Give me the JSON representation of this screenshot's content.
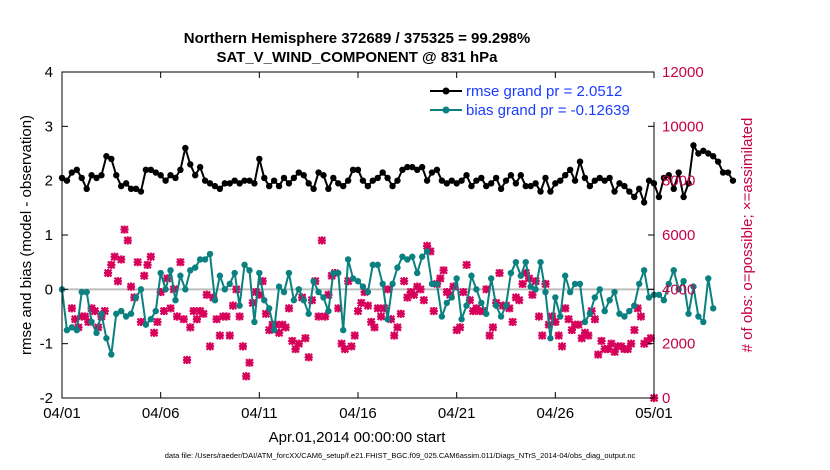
{
  "chart_data": {
    "type": "line",
    "title": "Northern Hemisphere 372689 / 375325 = 99.298%",
    "subtitle": "SAT_V_WIND_COMPONENT @ 831 hPa",
    "xlabel": "Apr.01,2014 00:00:00 start",
    "ylabel": "rmse and bias (model - observation)",
    "y2label": "# of obs: o=possible; ×=assimilated",
    "xlim": [
      0,
      30
    ],
    "ylim": [
      -2,
      4
    ],
    "y2lim": [
      0,
      12000
    ],
    "xticks": [
      0,
      5,
      10,
      15,
      20,
      25,
      30
    ],
    "xticklabels": [
      "04/01",
      "04/06",
      "04/11",
      "04/16",
      "04/21",
      "04/26",
      "05/01"
    ],
    "yticks": [
      -2,
      -1,
      0,
      1,
      2,
      3,
      4
    ],
    "y2ticks": [
      0,
      2000,
      4000,
      6000,
      8000,
      10000,
      12000
    ],
    "zero_line": 0,
    "legend": [
      "rmse grand pr = 2.0512",
      "bias grand pr = -0.12639"
    ],
    "x_step_days": 0.25,
    "series": [
      {
        "name": "rmse",
        "color": "#000000",
        "values": [
          2.05,
          2.0,
          2.15,
          2.2,
          2.05,
          1.85,
          2.1,
          2.05,
          2.1,
          2.45,
          2.4,
          2.1,
          1.9,
          1.95,
          1.85,
          1.85,
          1.8,
          2.2,
          2.2,
          2.15,
          2.1,
          2.0,
          2.1,
          2.05,
          2.2,
          2.6,
          2.3,
          2.1,
          2.25,
          2.0,
          1.95,
          1.9,
          1.85,
          1.95,
          1.95,
          2.0,
          1.95,
          2.0,
          2.0,
          1.95,
          2.4,
          2.05,
          1.9,
          2.0,
          1.9,
          2.05,
          1.95,
          2.05,
          2.15,
          2.1,
          1.95,
          1.85,
          2.15,
          2.1,
          1.85,
          2.05,
          1.95,
          1.9,
          2.0,
          2.2,
          2.2,
          2.0,
          1.9,
          2.0,
          2.05,
          2.15,
          2.05,
          1.9,
          2.0,
          2.2,
          2.25,
          2.25,
          2.2,
          2.25,
          2.0,
          2.15,
          2.2,
          2.0,
          1.95,
          2.0,
          1.95,
          2.0,
          2.1,
          1.9,
          2.0,
          2.05,
          1.9,
          1.95,
          2.05,
          1.85,
          2.0,
          2.1,
          1.95,
          2.1,
          1.9,
          1.9,
          1.95,
          1.8,
          2.05,
          1.8,
          1.95,
          2.0,
          2.1,
          2.2,
          2.0,
          2.35,
          2.05,
          1.9,
          2.0,
          2.05,
          2.0,
          2.05,
          1.8,
          1.95,
          1.9,
          1.8,
          1.7,
          1.85,
          1.6,
          2.0,
          1.95,
          1.7,
          2.05,
          2.1,
          1.85,
          2.15,
          1.7,
          1.95,
          2.65,
          2.5,
          2.55,
          2.5,
          2.45,
          2.35,
          2.15,
          2.15,
          2.0
        ],
        "start_day": 0
      },
      {
        "name": "bias",
        "color": "#0a8080",
        "values": [
          0.0,
          -0.75,
          -0.7,
          -0.75,
          -0.05,
          -0.05,
          -0.6,
          -0.8,
          -0.45,
          -0.9,
          -1.2,
          -0.45,
          -0.4,
          -0.5,
          -0.45,
          -0.15,
          0.0,
          -0.65,
          -0.55,
          -0.4,
          0.3,
          0.0,
          0.35,
          -0.2,
          0.25,
          0.0,
          0.35,
          0.4,
          0.55,
          0.55,
          0.65,
          -0.2,
          0.25,
          0.0,
          0.1,
          0.3,
          -0.3,
          0.45,
          0.35,
          -0.6,
          0.3,
          -0.2,
          -0.35,
          -0.75,
          0.05,
          -0.05,
          0.3,
          -0.2,
          0.0,
          -0.2,
          -0.45,
          0.15,
          -0.05,
          -0.15,
          -0.4,
          0.3,
          0.3,
          -0.75,
          0.55,
          0.2,
          0.15,
          0.05,
          -0.05,
          0.45,
          0.45,
          0.1,
          -0.55,
          0.1,
          0.4,
          0.6,
          0.55,
          0.6,
          0.3,
          0.6,
          0.7,
          0.1,
          0.1,
          -0.5,
          -0.25,
          -0.15,
          0.2,
          -0.55,
          -0.3,
          0.25,
          0.0,
          -0.25,
          -0.45,
          0.2,
          -0.3,
          -0.5,
          -0.3,
          0.3,
          0.5,
          0.25,
          0.5,
          0.05,
          0.0,
          0.5,
          -0.05,
          -0.9,
          -0.15,
          -0.5,
          0.25,
          -0.05,
          0.1,
          0.1,
          -0.6,
          -0.45,
          -0.15,
          0.0,
          -0.4,
          -0.2,
          -0.05,
          -0.45,
          -0.5,
          -0.4,
          -0.3,
          0.1,
          0.35,
          -0.15,
          -0.1,
          -0.1,
          -0.2,
          0.1,
          0.35,
          0.0,
          0.15,
          -0.45,
          0.05,
          -0.5,
          -0.6,
          0.2,
          -0.35
        ],
        "start_day": 0
      },
      {
        "name": "obs_assimilated",
        "color": "#d6005a",
        "axis": "right",
        "marker": "x",
        "values": [
          3300,
          2900,
          2600,
          3000,
          3000,
          2800,
          3300,
          3200,
          2600,
          3000,
          3200,
          4600,
          4900,
          5200,
          4300,
          5100,
          6200,
          5800,
          4100,
          3700,
          5000,
          2800,
          4500,
          4900,
          5200,
          2400,
          2800,
          3900,
          3200,
          4400,
          3300,
          4000,
          3000,
          5000,
          2900,
          1400,
          2600,
          3200,
          2900,
          3200,
          3100,
          3800,
          1900,
          3700,
          2900,
          2300,
          3000,
          3000,
          2300,
          3400,
          4000,
          3000,
          1900,
          800,
          1300,
          3500,
          3900,
          3800,
          4300,
          3100,
          2500,
          2700,
          2700,
          2400,
          2700,
          2600,
          3300,
          2100,
          1800,
          2000,
          3700,
          2200,
          1500,
          3600,
          4300,
          3000,
          5800,
          3000,
          3800,
          4500,
          4600,
          3300,
          2000,
          1800,
          4300,
          1900,
          2300,
          3200,
          3500,
          3900,
          3400,
          2800,
          2600,
          3300,
          3000,
          3300,
          4000,
          2900,
          2300,
          2600,
          3100,
          4300,
          3700,
          3900,
          3800,
          4100,
          4000,
          3600,
          5600,
          5400,
          3200,
          4200,
          4400,
          4700,
          3900,
          3800,
          4100,
          2500,
          2600,
          3900,
          4900,
          3600,
          3200,
          3300,
          3200,
          3200,
          4000,
          2300,
          2600,
          3500,
          4600,
          3400,
          3400,
          3300,
          2800,
          3700,
          3600,
          4200,
          4600,
          4400,
          3800,
          4300,
          3000,
          2300,
          4200,
          2700,
          3000,
          2800,
          2300,
          1900,
          3300,
          2900,
          2500,
          2700,
          2700,
          2200,
          2400,
          2300,
          3200,
          2900,
          1600,
          2100,
          1800,
          1800,
          2000,
          1700,
          1900,
          1900,
          1800,
          1800,
          2000,
          2500,
          3300,
          3000,
          2000,
          2100,
          2200,
          0
        ],
        "start_day": 0.5,
        "step_days": 0.1667
      }
    ]
  },
  "footer": "data file: /Users/raeder/DAI/ATM_forcXX/CAM6_setup/f.e21.FHIST_BGC.f09_025.CAM6assim.011/Diags_NTrS_2014-04/obs_diag_output.nc"
}
